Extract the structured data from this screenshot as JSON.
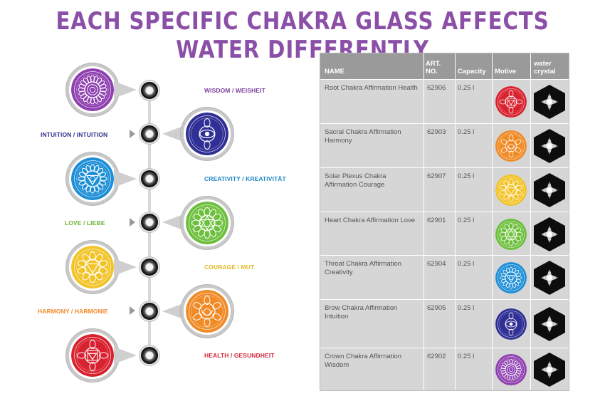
{
  "page_title": "EACH SPECIFIC CHAKRA GLASS AFFECTS WATER DIFFERENTLY",
  "diagram": {
    "labels": [
      {
        "text": "WISDOM / WEISHEIT",
        "color": "#7a3fa0"
      },
      {
        "text": "INTUITION / INTUITION",
        "color": "#2e2e8f"
      },
      {
        "text": "CREATIVITY / KREATIVITÄT",
        "color": "#1f86c6"
      },
      {
        "text": "LOVE / LIEBE",
        "color": "#6fb43a"
      },
      {
        "text": "COURAGE / MUT",
        "color": "#e3b826"
      },
      {
        "text": "HARMONY / HARMONIE",
        "color": "#ef8a2b"
      },
      {
        "text": "HEALTH / GESUNDHEIT",
        "color": "#d42838"
      }
    ],
    "bulb_colors": [
      "#8e3fb0",
      "#2f2f95",
      "#1e8fd6",
      "#6cbf3b",
      "#f2c326",
      "#f08a24",
      "#d9222f"
    ],
    "icons": [
      "crown-chakra-icon",
      "brow-chakra-icon",
      "throat-chakra-icon",
      "heart-chakra-icon",
      "solar-plexus-chakra-icon",
      "sacral-chakra-icon",
      "root-chakra-icon"
    ]
  },
  "table": {
    "headers": {
      "name": "NAME",
      "art_no": "ART. NO.",
      "capacity": "Capacity",
      "motive": "Motive",
      "water_crystal": "water crystal"
    },
    "rows": [
      {
        "name": "Root Chakra Affirmation Health",
        "art_no": "62906",
        "capacity": "0.25 l",
        "color": "#d9222f"
      },
      {
        "name": "Sacral Chakra Affirmation Harmony",
        "art_no": "62903",
        "capacity": "0.25 l",
        "color": "#f08a24"
      },
      {
        "name": "Solar Plexus Chakra Affirmation Courage",
        "art_no": "62907",
        "capacity": "0.25 l",
        "color": "#f2c326"
      },
      {
        "name": "Heart Chakra Affirmation Love",
        "art_no": "62901",
        "capacity": "0.25 l",
        "color": "#6cbf3b"
      },
      {
        "name": "Throat Chakra Affirmation Creativity",
        "art_no": "62904",
        "capacity": "0.25 l",
        "color": "#1e8fd6"
      },
      {
        "name": "Brow Chakra Affirmation Intuition",
        "art_no": "62905",
        "capacity": "0.25 l",
        "color": "#2f2f95"
      },
      {
        "name": "Crown Chakra Affirmation Wisdom",
        "art_no": "62902",
        "capacity": "0.25 l",
        "color": "#8e3fb0"
      }
    ]
  }
}
